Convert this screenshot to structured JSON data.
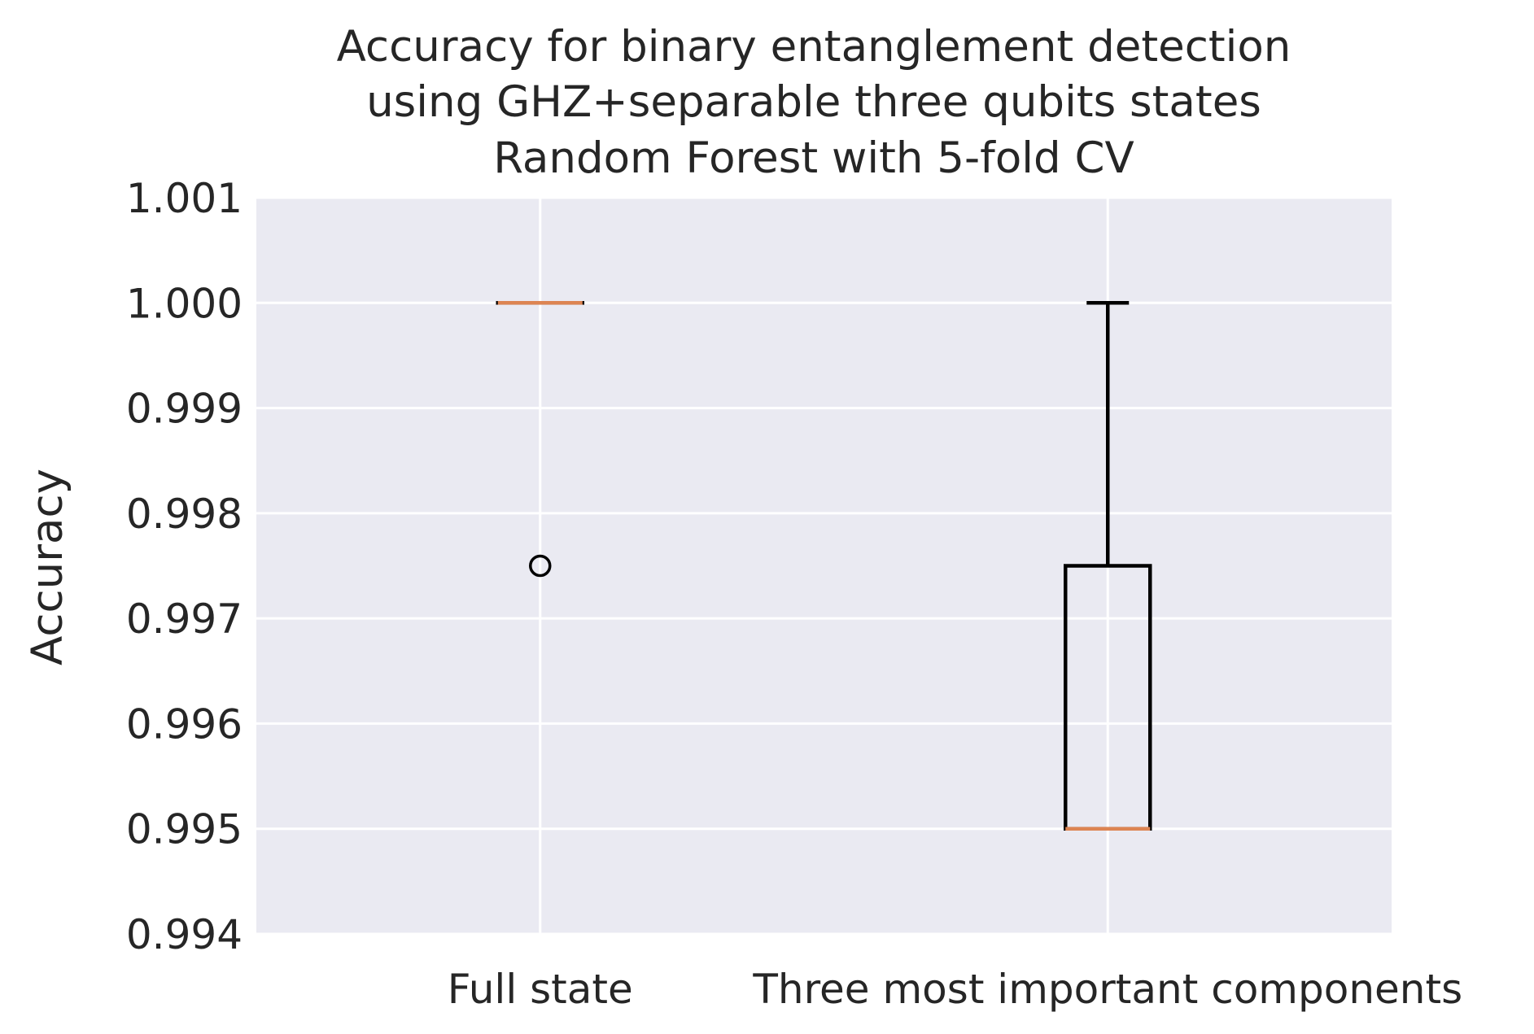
{
  "chart_data": {
    "type": "box",
    "title": [
      "Accuracy for binary entanglement detection",
      "using GHZ+separable three qubits states",
      "Random Forest with 5-fold CV"
    ],
    "xlabel": "",
    "ylabel": "Accuracy",
    "ylim": [
      0.994,
      1.001
    ],
    "yticks": [
      "0.994",
      "0.995",
      "0.996",
      "0.997",
      "0.998",
      "0.999",
      "1.000",
      "1.001"
    ],
    "grid": true,
    "categories": [
      "Full state",
      "Three most important components"
    ],
    "boxes": [
      {
        "category": "Full state",
        "whisker_low": 1.0,
        "q1": 1.0,
        "median": 1.0,
        "q3": 1.0,
        "whisker_high": 1.0,
        "outliers": [
          0.9975
        ]
      },
      {
        "category": "Three most important components",
        "whisker_low": 0.995,
        "q1": 0.995,
        "median": 0.995,
        "q3": 0.9975,
        "whisker_high": 1.0,
        "outliers": []
      }
    ],
    "colors": {
      "plot_background": "#EAEAF2",
      "grid": "#FFFFFF",
      "box": "#000000",
      "median": "#DD8452",
      "text": "#262626"
    }
  }
}
